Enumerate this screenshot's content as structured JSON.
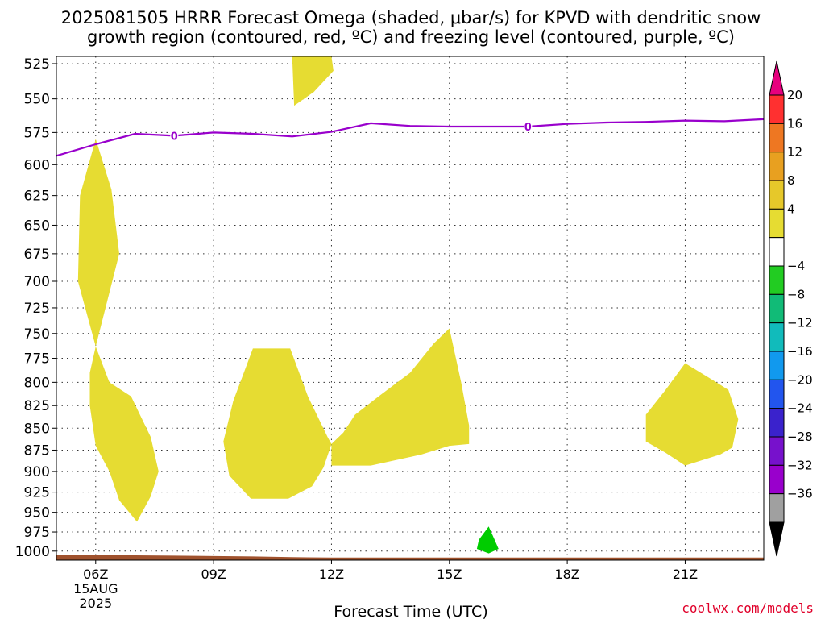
{
  "title_line1": "2025081505 HRRR Forecast Omega (shaded, μbar/s) for KPVD with dendritic snow",
  "title_line2": "growth region (contoured, red, ºC) and freezing level (contoured, purple, ºC)",
  "credit": "coolwx.com/models",
  "chart_data": {
    "type": "heatmap",
    "title": "2025081505 HRRR Forecast Omega (shaded, μbar/s) for KPVD with dendritic snow growth region (contoured, red, ºC) and freezing level (contoured, purple, ºC)",
    "xlabel": "Forecast Time (UTC)",
    "ylabel": "",
    "x_range_hours": [
      5,
      23
    ],
    "y_range_hPa": [
      1012,
      520
    ],
    "y_scale": "log",
    "grid": true,
    "x_ticks": [
      {
        "hour": 6,
        "label": "06Z",
        "sub1": "15AUG",
        "sub2": "2025"
      },
      {
        "hour": 9,
        "label": "09Z"
      },
      {
        "hour": 12,
        "label": "12Z"
      },
      {
        "hour": 15,
        "label": "15Z"
      },
      {
        "hour": 18,
        "label": "18Z"
      },
      {
        "hour": 21,
        "label": "21Z"
      }
    ],
    "y_ticks": [
      525,
      550,
      575,
      600,
      625,
      650,
      675,
      700,
      725,
      750,
      775,
      800,
      825,
      850,
      875,
      900,
      925,
      950,
      975,
      1000
    ],
    "colorbar": {
      "labels": [
        "20",
        "16",
        "12",
        "8",
        "4",
        "−4",
        "−8",
        "−12",
        "−16",
        "−20",
        "−24",
        "−28",
        "−32",
        "−36"
      ],
      "colors": [
        "#e6007e",
        "#ff3030",
        "#ee7722",
        "#e8a020",
        "#e6c82a",
        "#e6dc32",
        "#ffffff",
        "#22cc22",
        "#11bb77",
        "#11bbbb",
        "#1199ee",
        "#2255ee",
        "#3a22cc",
        "#7711cc",
        "#9900cc",
        "#a0a0a0",
        "#000000"
      ]
    },
    "omega_regions": [
      {
        "name": "upper-lobe",
        "color": "#e6dc32",
        "points": [
          [
            11.0,
            520
          ],
          [
            11.05,
            555
          ],
          [
            11.55,
            545
          ],
          [
            12.05,
            530
          ],
          [
            12.0,
            520
          ]
        ]
      },
      {
        "name": "06z-column-top",
        "color": "#e6dc32",
        "points": [
          [
            6.0,
            580
          ],
          [
            6.4,
            620
          ],
          [
            6.6,
            675
          ],
          [
            6.0,
            763
          ],
          [
            5.55,
            700
          ],
          [
            5.6,
            625
          ]
        ]
      },
      {
        "name": "06z-column-bottom",
        "color": "#e6dc32",
        "points": [
          [
            6.0,
            763
          ],
          [
            6.35,
            800
          ],
          [
            6.9,
            815
          ],
          [
            7.4,
            860
          ],
          [
            7.6,
            900
          ],
          [
            7.4,
            930
          ],
          [
            7.05,
            962
          ],
          [
            6.6,
            935
          ],
          [
            6.35,
            900
          ],
          [
            6.0,
            870
          ],
          [
            5.85,
            825
          ],
          [
            5.85,
            790
          ]
        ]
      },
      {
        "name": "mid-lobe",
        "color": "#e6dc32",
        "points": [
          [
            10.0,
            765
          ],
          [
            10.95,
            765
          ],
          [
            11.4,
            815
          ],
          [
            11.9,
            860
          ],
          [
            12.0,
            868
          ],
          [
            11.8,
            895
          ],
          [
            11.5,
            918
          ],
          [
            10.9,
            933
          ],
          [
            9.95,
            933
          ],
          [
            9.4,
            905
          ],
          [
            9.25,
            865
          ],
          [
            9.5,
            820
          ]
        ]
      },
      {
        "name": "east-lobe",
        "color": "#e6dc32",
        "points": [
          [
            12.0,
            868
          ],
          [
            12.3,
            855
          ],
          [
            12.6,
            835
          ],
          [
            13.2,
            815
          ],
          [
            14.0,
            790
          ],
          [
            14.6,
            760
          ],
          [
            15.0,
            745
          ],
          [
            15.3,
            800
          ],
          [
            15.5,
            847
          ],
          [
            15.5,
            868
          ],
          [
            15.0,
            870
          ],
          [
            14.3,
            880
          ],
          [
            13.0,
            893
          ],
          [
            12.0,
            893
          ]
        ]
      },
      {
        "name": "21z-lobe",
        "color": "#e6dc32",
        "points": [
          [
            21.0,
            780
          ],
          [
            21.6,
            795
          ],
          [
            22.1,
            808
          ],
          [
            22.35,
            840
          ],
          [
            22.2,
            872
          ],
          [
            21.9,
            880
          ],
          [
            21.0,
            893
          ],
          [
            20.5,
            878
          ],
          [
            20.0,
            865
          ],
          [
            20.0,
            835
          ],
          [
            20.5,
            808
          ]
        ]
      },
      {
        "name": "green-cell",
        "color": "#00cc00",
        "points": [
          [
            16.0,
            968
          ],
          [
            16.15,
            985
          ],
          [
            16.25,
            997
          ],
          [
            16.0,
            1003
          ],
          [
            15.7,
            997
          ],
          [
            15.75,
            985
          ]
        ]
      }
    ],
    "freezing_level": {
      "label": "0",
      "color": "#9900cc",
      "label_hours": [
        8.0,
        17.0
      ],
      "points": [
        [
          5.0,
          593
        ],
        [
          6.0,
          584
        ],
        [
          7.0,
          576
        ],
        [
          8.0,
          577.5
        ],
        [
          9.0,
          575
        ],
        [
          10.0,
          576
        ],
        [
          11.0,
          578
        ],
        [
          12.0,
          574.5
        ],
        [
          13.0,
          568
        ],
        [
          14.0,
          570
        ],
        [
          15.0,
          570.5
        ],
        [
          16.0,
          570.5
        ],
        [
          17.0,
          570.5
        ],
        [
          18.0,
          568.5
        ],
        [
          19.0,
          567.5
        ],
        [
          20.0,
          567
        ],
        [
          21.0,
          566
        ],
        [
          22.0,
          566.5
        ],
        [
          23.0,
          565
        ]
      ]
    },
    "terrain": {
      "color": "#a0522d",
      "points": [
        [
          5.0,
          1005
        ],
        [
          6.0,
          1005
        ],
        [
          7.0,
          1005.5
        ],
        [
          8.0,
          1006
        ],
        [
          9.0,
          1006.5
        ],
        [
          10.0,
          1007
        ],
        [
          11.0,
          1008
        ],
        [
          12.0,
          1008.5
        ],
        [
          13.0,
          1008.5
        ],
        [
          15.0,
          1008.5
        ],
        [
          18.0,
          1008.5
        ],
        [
          23.0,
          1008.5
        ]
      ]
    }
  }
}
